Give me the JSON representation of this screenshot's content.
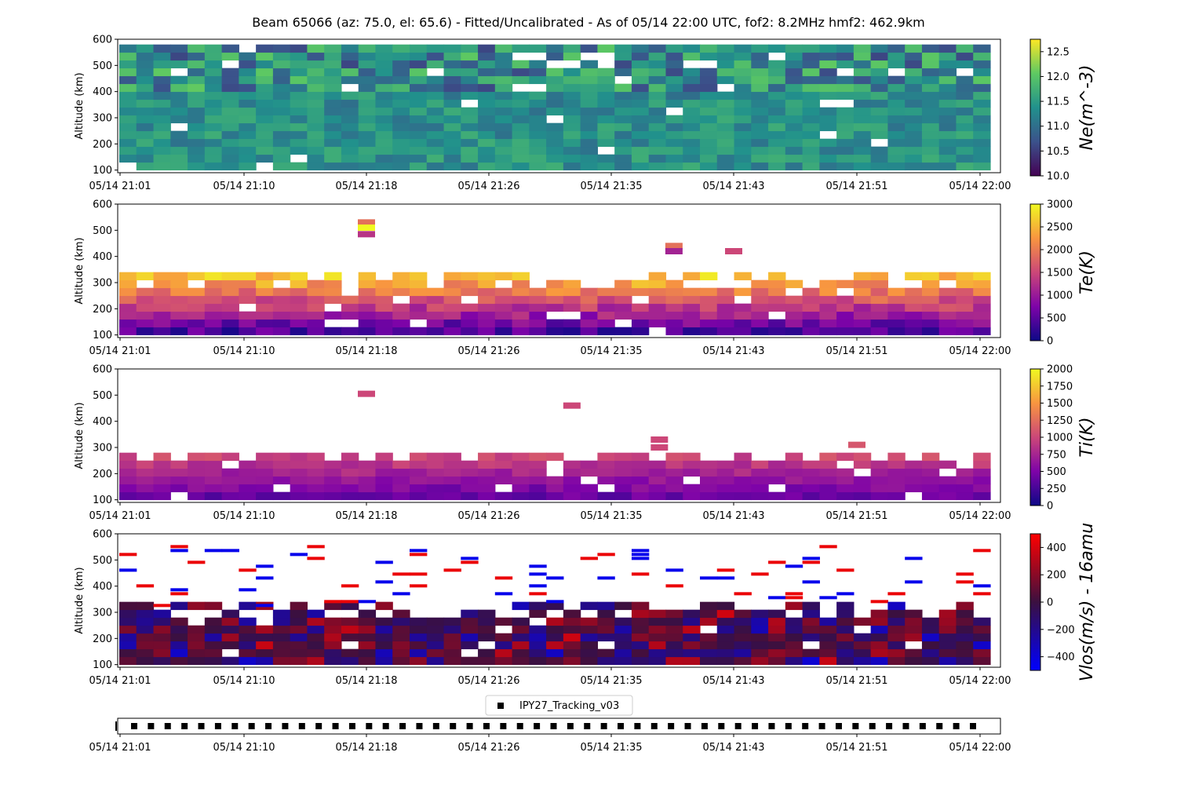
{
  "title": "Beam 65066 (az: 75.0, el: 65.6) - Fitted/Uncalibrated - As of 05/14 22:00 UTC, fof2: 8.2MHz  hmf2: 462.9km",
  "time_ticks": [
    "05/14 21:01",
    "05/14 21:10",
    "05/14 21:18",
    "05/14 21:26",
    "05/14 21:35",
    "05/14 21:43",
    "05/14 21:51",
    "05/14 22:00"
  ],
  "alt_ticks": [
    "100",
    "200",
    "300",
    "400",
    "500",
    "600"
  ],
  "ylabel": "Altitude (km)",
  "legend_label": "IPY27_Tracking_v03",
  "chart_data": [
    {
      "type": "heatmap",
      "id": "ne",
      "ylabel": "Altitude (km)",
      "colorbar_label": "Ne(m^-3)",
      "colorbar_ticks": [
        "10.0",
        "10.5",
        "11.0",
        "11.5",
        "12.0",
        "12.5"
      ],
      "clim": [
        10.0,
        12.75
      ],
      "colormap": "viridis",
      "ylim": [
        90,
        600
      ],
      "time_range": [
        "05/14 21:01",
        "05/14 22:00"
      ],
      "columns": 51,
      "altitude_bins": 16,
      "altitude_top": 560,
      "bin_height_km": 30,
      "level_range": [
        11.0,
        12.2
      ],
      "note_values": "Ne values mostly 11.0-12.2 from 100 to 560 km"
    },
    {
      "type": "heatmap",
      "id": "te",
      "ylabel": "Altitude (km)",
      "colorbar_label": "Te(K)",
      "colorbar_ticks": [
        "0",
        "500",
        "1000",
        "1500",
        "2000",
        "2500",
        "3000"
      ],
      "clim": [
        0,
        3000
      ],
      "colormap": "plasma",
      "ylim": [
        90,
        600
      ],
      "columns": 51,
      "altitude_top": 320,
      "level_range": [
        300,
        3000
      ],
      "gradient": "Te ~400 K near 100 km rising to ~2700 K near 250 km",
      "sparse_cells": [
        {
          "t": "05/14 21:18",
          "alt": 530,
          "value": 1900
        },
        {
          "t": "05/14 21:18",
          "alt": 510,
          "value": 3000
        },
        {
          "t": "05/14 21:18",
          "alt": 485,
          "value": 1300
        },
        {
          "t": "05/14 21:39",
          "alt": 440,
          "value": 1900
        },
        {
          "t": "05/14 21:39",
          "alt": 420,
          "value": 1100
        },
        {
          "t": "05/14 21:43",
          "alt": 420,
          "value": 1500
        }
      ]
    },
    {
      "type": "heatmap",
      "id": "ti",
      "ylabel": "Altitude (km)",
      "colorbar_label": "Ti(K)",
      "colorbar_ticks": [
        "0",
        "250",
        "500",
        "750",
        "1000",
        "1250",
        "1500",
        "1750",
        "2000"
      ],
      "clim": [
        0,
        2000
      ],
      "colormap": "plasma",
      "ylim": [
        90,
        600
      ],
      "columns": 51,
      "altitude_top": 280,
      "level_range": [
        300,
        1300
      ],
      "gradient": "Ti ~400 K near 100 km rising to ~1000 K near 250 km",
      "sparse_cells": [
        {
          "t": "05/14 21:18",
          "alt": 505,
          "value": 1000
        },
        {
          "t": "05/14 21:32",
          "alt": 460,
          "value": 1000
        },
        {
          "t": "05/14 21:38",
          "alt": 330,
          "value": 1000
        },
        {
          "t": "05/14 21:38",
          "alt": 300,
          "value": 1000
        },
        {
          "t": "05/14 21:51",
          "alt": 310,
          "value": 1100
        }
      ]
    },
    {
      "type": "heatmap",
      "id": "vlos",
      "ylabel": "Altitude (km)",
      "colorbar_label": "Vlos(m/s) - 16amu",
      "colorbar_ticks": [
        "400",
        "200",
        "0",
        "−200",
        "−400"
      ],
      "clim": [
        -500,
        500
      ],
      "colormap": "bwr-dark",
      "ylim": [
        90,
        600
      ],
      "columns": 51,
      "altitude_top": 320,
      "level_range": [
        -500,
        500
      ],
      "note_values": "Vlos mostly -200 to 200 m/s below 320 km, scattered +/-500 m/s cells up to 560 km"
    }
  ],
  "colors": {
    "axis": "#000000",
    "background": "#ffffff",
    "legend_border": "#cccccc"
  }
}
